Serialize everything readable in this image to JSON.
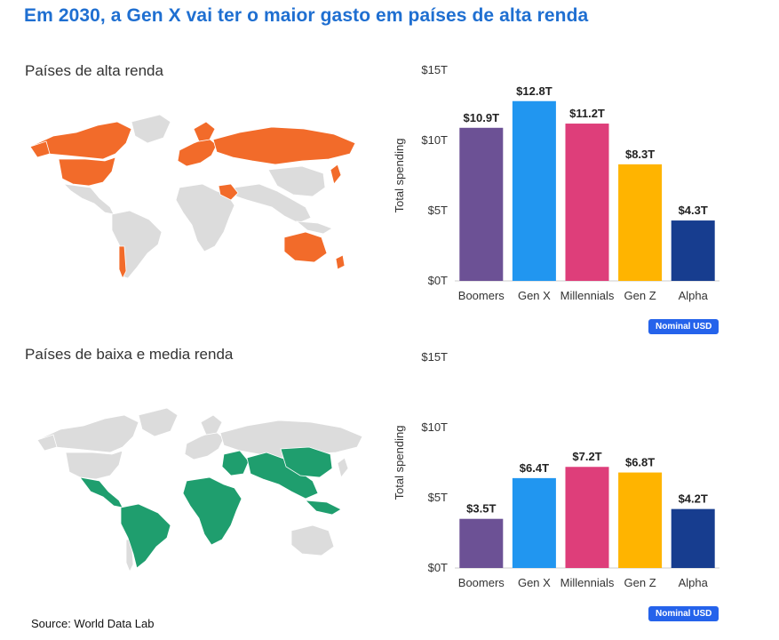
{
  "title": "Em 2030, a Gen X vai ter o maior gasto em países de alta renda",
  "sections": [
    {
      "label": "Países de alta renda",
      "map_highlight_color": "#f26b2a"
    },
    {
      "label": "Países de baixa e media renda",
      "map_highlight_color": "#1f9e6e"
    }
  ],
  "source": "Source: World Data Lab",
  "colors": {
    "title": "#1f6fd1",
    "map_base": "#dcdcdc",
    "bars": [
      "#6c5195",
      "#2196f0",
      "#de3e7a",
      "#ffb400",
      "#173d8f"
    ],
    "badge": "#2563eb"
  },
  "chart_data": [
    {
      "type": "bar",
      "categories": [
        "Boomers",
        "Gen X",
        "Millennials",
        "Gen Z",
        "Alpha"
      ],
      "values": [
        10.9,
        12.8,
        11.2,
        8.3,
        4.3
      ],
      "value_labels": [
        "$10.9T",
        "$12.8T",
        "$11.2T",
        "$8.3T",
        "$4.3T"
      ],
      "ylabel": "Total spending",
      "yticks": [
        "$0T",
        "$5T",
        "$10T",
        "$15T"
      ],
      "ytick_values": [
        0,
        5,
        10,
        15
      ],
      "ylim": [
        0,
        15
      ],
      "badge": "Nominal USD",
      "grid": false
    },
    {
      "type": "bar",
      "categories": [
        "Boomers",
        "Gen X",
        "Millennials",
        "Gen Z",
        "Alpha"
      ],
      "values": [
        3.5,
        6.4,
        7.2,
        6.8,
        4.2
      ],
      "value_labels": [
        "$3.5T",
        "$6.4T",
        "$7.2T",
        "$6.8T",
        "$4.2T"
      ],
      "ylabel": "Total spending",
      "yticks": [
        "$0T",
        "$5T",
        "$10T",
        "$15T"
      ],
      "ytick_values": [
        0,
        5,
        10,
        15
      ],
      "ylim": [
        0,
        15
      ],
      "badge": "Nominal USD",
      "grid": false
    }
  ]
}
